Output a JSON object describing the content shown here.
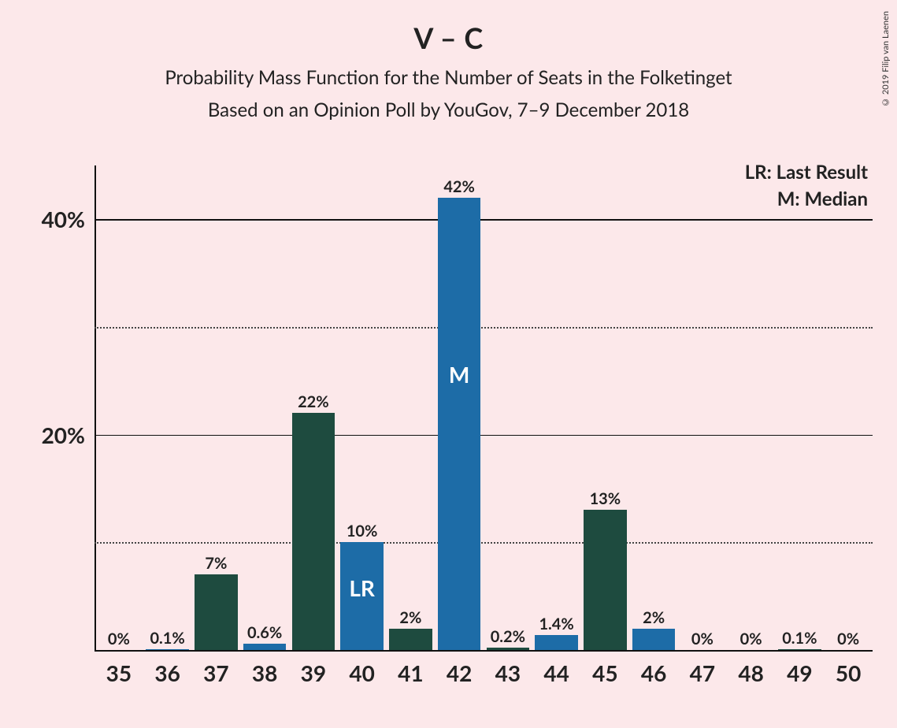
{
  "copyright": "© 2019 Filip van Laenen",
  "title": "V – C",
  "subtitle1": "Probability Mass Function for the Number of Seats in the Folketinget",
  "subtitle2": "Based on an Opinion Poll by YouGov, 7–9 December 2018",
  "legend": {
    "lr": "LR: Last Result",
    "m": "M: Median"
  },
  "chart": {
    "type": "bar",
    "background_color": "#fce8ea",
    "axis_color": "#111111",
    "grid_major_color": "#111111",
    "grid_minor_style": "dotted",
    "grid_minor_color": "#444444",
    "colors": {
      "green": "#1e4b3f",
      "blue": "#1d6ca7",
      "label_text": "#222222",
      "inner_text": "#ffffff"
    },
    "xlim": [
      35,
      50
    ],
    "ylim": [
      0,
      45
    ],
    "y_ticks_major": [
      20,
      40
    ],
    "y_ticks_minor": [
      10,
      30
    ],
    "y_tick_labels": {
      "20": "20%",
      "40": "40%"
    },
    "bar_width": 0.88,
    "label_fontsize": 20,
    "axis_label_fontsize": 28,
    "title_fontsize": 36,
    "subtitle_fontsize": 24,
    "categories": [
      35,
      36,
      37,
      38,
      39,
      40,
      41,
      42,
      43,
      44,
      45,
      46,
      47,
      48,
      49,
      50
    ],
    "bars": [
      {
        "x": 35,
        "value": 0,
        "label": "0%",
        "color": "green"
      },
      {
        "x": 36,
        "value": 0.1,
        "label": "0.1%",
        "color": "blue"
      },
      {
        "x": 37,
        "value": 7,
        "label": "7%",
        "color": "green"
      },
      {
        "x": 38,
        "value": 0.6,
        "label": "0.6%",
        "color": "blue"
      },
      {
        "x": 39,
        "value": 22,
        "label": "22%",
        "color": "green"
      },
      {
        "x": 40,
        "value": 10,
        "label": "10%",
        "color": "blue",
        "inner": "LR"
      },
      {
        "x": 41,
        "value": 2,
        "label": "2%",
        "color": "green"
      },
      {
        "x": 42,
        "value": 42,
        "label": "42%",
        "color": "blue",
        "inner": "M"
      },
      {
        "x": 43,
        "value": 0.2,
        "label": "0.2%",
        "color": "green"
      },
      {
        "x": 44,
        "value": 1.4,
        "label": "1.4%",
        "color": "blue"
      },
      {
        "x": 45,
        "value": 13,
        "label": "13%",
        "color": "green"
      },
      {
        "x": 46,
        "value": 2,
        "label": "2%",
        "color": "blue"
      },
      {
        "x": 47,
        "value": 0,
        "label": "0%",
        "color": "green"
      },
      {
        "x": 48,
        "value": 0,
        "label": "0%",
        "color": "blue"
      },
      {
        "x": 49,
        "value": 0.1,
        "label": "0.1%",
        "color": "green"
      },
      {
        "x": 50,
        "value": 0,
        "label": "0%",
        "color": "blue"
      }
    ]
  }
}
